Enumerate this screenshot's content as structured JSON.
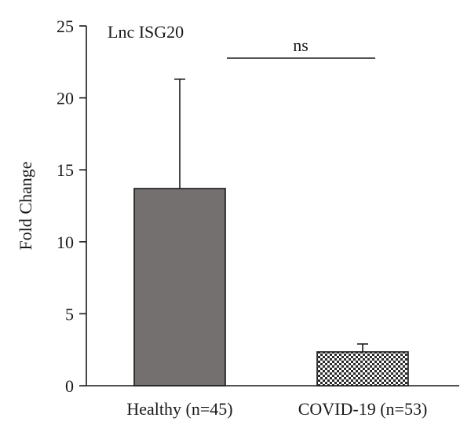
{
  "chart_data": {
    "type": "bar",
    "title": "Lnc ISG20",
    "ylabel": "Fold Change",
    "xlabel": "",
    "ylim": [
      0,
      25
    ],
    "yticks": [
      0,
      5,
      10,
      15,
      20,
      25
    ],
    "categories": [
      "Healthy (n=45)",
      "COVID-19 (n=53)"
    ],
    "values": [
      13.7,
      2.35
    ],
    "error_upper": [
      21.3,
      2.9
    ],
    "bar_colors": [
      "#747070",
      "checkered"
    ],
    "significance": {
      "label": "ns",
      "between": [
        0,
        1
      ]
    },
    "grid": false,
    "legend": "none"
  }
}
